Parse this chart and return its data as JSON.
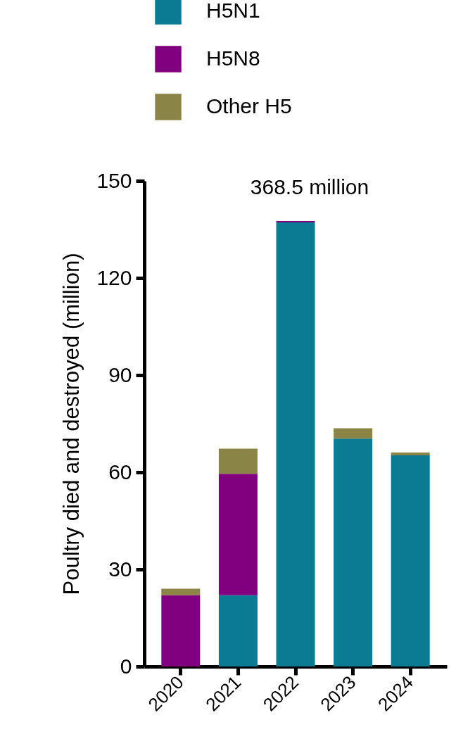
{
  "chart_data": {
    "type": "bar",
    "stacked": true,
    "ylabel": "Poultry died and destroyed (million)",
    "categories": [
      "2020",
      "2021",
      "2022",
      "2023",
      "2024"
    ],
    "series": [
      {
        "name": "H5N1",
        "color": "#0a7b93",
        "values": [
          0,
          22,
          137.2,
          70.4,
          65.2
        ]
      },
      {
        "name": "H5N8",
        "color": "#800080",
        "values": [
          22,
          37.5,
          0.4,
          0,
          0
        ]
      },
      {
        "name": "Other H5",
        "color": "#8b8447",
        "values": [
          2,
          7.8,
          0,
          3.2,
          0.9
        ]
      }
    ],
    "ylim": [
      0,
      150
    ],
    "yticks": [
      0,
      30,
      60,
      90,
      120,
      150
    ],
    "grid": false,
    "legend": "top left",
    "annotations": [
      "368.5 million"
    ]
  }
}
